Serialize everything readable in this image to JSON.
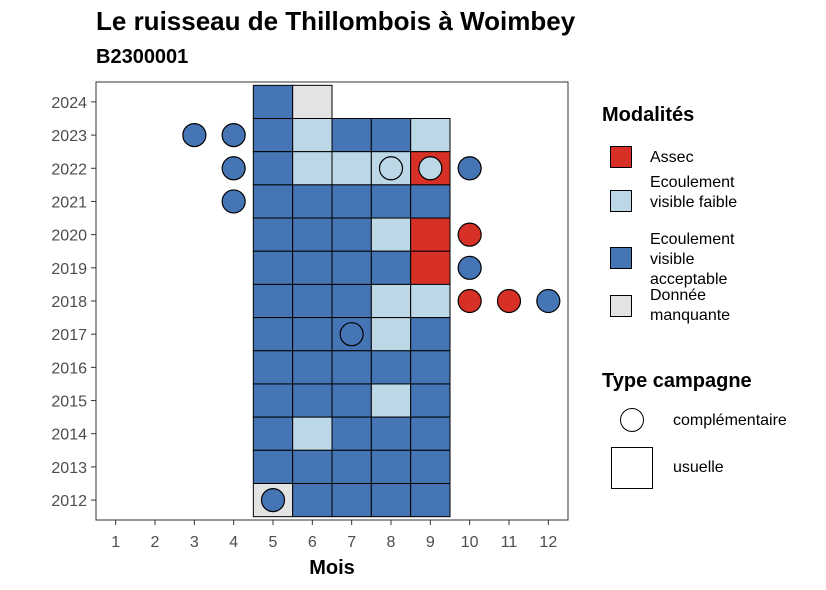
{
  "header": {
    "title": "Le ruisseau de Thillombois à Woimbey",
    "subtitle": "B2300001"
  },
  "legend": {
    "modalites_title": "Modalités",
    "modalites": [
      {
        "label": "Assec",
        "color": "#d73027"
      },
      {
        "label": "Ecoulement visible faible",
        "color": "#bcd7e6"
      },
      {
        "label": "Ecoulement visible acceptable",
        "color": "#4575b4"
      },
      {
        "label": "Donnée manquante",
        "color": "#e3e3e3"
      }
    ],
    "campagne_title": "Type campagne",
    "campagnes": [
      {
        "label": "complémentaire",
        "shape": "circle"
      },
      {
        "label": "usuelle",
        "shape": "square"
      }
    ]
  },
  "chart_data": {
    "type": "heatmap",
    "xlabel": "Mois",
    "ylabel": "",
    "x_ticks": [
      1,
      2,
      3,
      4,
      5,
      6,
      7,
      8,
      9,
      10,
      11,
      12
    ],
    "y_ticks": [
      2012,
      2013,
      2014,
      2015,
      2016,
      2017,
      2018,
      2019,
      2020,
      2021,
      2022,
      2023,
      2024
    ],
    "xlim": [
      0.5,
      12.5
    ],
    "ylim": [
      2011.4,
      2024.6
    ],
    "colors": {
      "Assec": "#d73027",
      "Ecoulement visible faible": "#bcd7e6",
      "Ecoulement visible acceptable": "#4575b4",
      "Donnée manquante": "#e3e3e3"
    },
    "usuelle": [
      {
        "year": 2024,
        "month": 5,
        "value": "Ecoulement visible acceptable"
      },
      {
        "year": 2024,
        "month": 6,
        "value": "Donnée manquante"
      },
      {
        "year": 2023,
        "month": 5,
        "value": "Ecoulement visible acceptable"
      },
      {
        "year": 2023,
        "month": 6,
        "value": "Ecoulement visible faible"
      },
      {
        "year": 2023,
        "month": 7,
        "value": "Ecoulement visible acceptable"
      },
      {
        "year": 2023,
        "month": 8,
        "value": "Ecoulement visible acceptable"
      },
      {
        "year": 2023,
        "month": 9,
        "value": "Ecoulement visible faible"
      },
      {
        "year": 2022,
        "month": 5,
        "value": "Ecoulement visible acceptable"
      },
      {
        "year": 2022,
        "month": 6,
        "value": "Ecoulement visible faible"
      },
      {
        "year": 2022,
        "month": 7,
        "value": "Ecoulement visible faible"
      },
      {
        "year": 2022,
        "month": 8,
        "value": "Ecoulement visible faible"
      },
      {
        "year": 2022,
        "month": 9,
        "value": "Assec"
      },
      {
        "year": 2021,
        "month": 5,
        "value": "Ecoulement visible acceptable"
      },
      {
        "year": 2021,
        "month": 6,
        "value": "Ecoulement visible acceptable"
      },
      {
        "year": 2021,
        "month": 7,
        "value": "Ecoulement visible acceptable"
      },
      {
        "year": 2021,
        "month": 8,
        "value": "Ecoulement visible acceptable"
      },
      {
        "year": 2021,
        "month": 9,
        "value": "Ecoulement visible acceptable"
      },
      {
        "year": 2020,
        "month": 5,
        "value": "Ecoulement visible acceptable"
      },
      {
        "year": 2020,
        "month": 6,
        "value": "Ecoulement visible acceptable"
      },
      {
        "year": 2020,
        "month": 7,
        "value": "Ecoulement visible acceptable"
      },
      {
        "year": 2020,
        "month": 8,
        "value": "Ecoulement visible faible"
      },
      {
        "year": 2020,
        "month": 9,
        "value": "Assec"
      },
      {
        "year": 2019,
        "month": 5,
        "value": "Ecoulement visible acceptable"
      },
      {
        "year": 2019,
        "month": 6,
        "value": "Ecoulement visible acceptable"
      },
      {
        "year": 2019,
        "month": 7,
        "value": "Ecoulement visible acceptable"
      },
      {
        "year": 2019,
        "month": 8,
        "value": "Ecoulement visible acceptable"
      },
      {
        "year": 2019,
        "month": 9,
        "value": "Assec"
      },
      {
        "year": 2018,
        "month": 5,
        "value": "Ecoulement visible acceptable"
      },
      {
        "year": 2018,
        "month": 6,
        "value": "Ecoulement visible acceptable"
      },
      {
        "year": 2018,
        "month": 7,
        "value": "Ecoulement visible acceptable"
      },
      {
        "year": 2018,
        "month": 8,
        "value": "Ecoulement visible faible"
      },
      {
        "year": 2018,
        "month": 9,
        "value": "Ecoulement visible faible"
      },
      {
        "year": 2017,
        "month": 5,
        "value": "Ecoulement visible acceptable"
      },
      {
        "year": 2017,
        "month": 6,
        "value": "Ecoulement visible acceptable"
      },
      {
        "year": 2017,
        "month": 7,
        "value": "Ecoulement visible acceptable"
      },
      {
        "year": 2017,
        "month": 8,
        "value": "Ecoulement visible faible"
      },
      {
        "year": 2017,
        "month": 9,
        "value": "Ecoulement visible acceptable"
      },
      {
        "year": 2016,
        "month": 5,
        "value": "Ecoulement visible acceptable"
      },
      {
        "year": 2016,
        "month": 6,
        "value": "Ecoulement visible acceptable"
      },
      {
        "year": 2016,
        "month": 7,
        "value": "Ecoulement visible acceptable"
      },
      {
        "year": 2016,
        "month": 8,
        "value": "Ecoulement visible acceptable"
      },
      {
        "year": 2016,
        "month": 9,
        "value": "Ecoulement visible acceptable"
      },
      {
        "year": 2015,
        "month": 5,
        "value": "Ecoulement visible acceptable"
      },
      {
        "year": 2015,
        "month": 6,
        "value": "Ecoulement visible acceptable"
      },
      {
        "year": 2015,
        "month": 7,
        "value": "Ecoulement visible acceptable"
      },
      {
        "year": 2015,
        "month": 8,
        "value": "Ecoulement visible faible"
      },
      {
        "year": 2015,
        "month": 9,
        "value": "Ecoulement visible acceptable"
      },
      {
        "year": 2014,
        "month": 5,
        "value": "Ecoulement visible acceptable"
      },
      {
        "year": 2014,
        "month": 6,
        "value": "Ecoulement visible faible"
      },
      {
        "year": 2014,
        "month": 7,
        "value": "Ecoulement visible acceptable"
      },
      {
        "year": 2014,
        "month": 8,
        "value": "Ecoulement visible acceptable"
      },
      {
        "year": 2014,
        "month": 9,
        "value": "Ecoulement visible acceptable"
      },
      {
        "year": 2013,
        "month": 5,
        "value": "Ecoulement visible acceptable"
      },
      {
        "year": 2013,
        "month": 6,
        "value": "Ecoulement visible acceptable"
      },
      {
        "year": 2013,
        "month": 7,
        "value": "Ecoulement visible acceptable"
      },
      {
        "year": 2013,
        "month": 8,
        "value": "Ecoulement visible acceptable"
      },
      {
        "year": 2013,
        "month": 9,
        "value": "Ecoulement visible acceptable"
      },
      {
        "year": 2012,
        "month": 5,
        "value": "Donnée manquante"
      },
      {
        "year": 2012,
        "month": 6,
        "value": "Ecoulement visible acceptable"
      },
      {
        "year": 2012,
        "month": 7,
        "value": "Ecoulement visible acceptable"
      },
      {
        "year": 2012,
        "month": 8,
        "value": "Ecoulement visible acceptable"
      },
      {
        "year": 2012,
        "month": 9,
        "value": "Ecoulement visible acceptable"
      }
    ],
    "complementaire": [
      {
        "year": 2023,
        "month": 3,
        "value": "Ecoulement visible acceptable"
      },
      {
        "year": 2023,
        "month": 4,
        "value": "Ecoulement visible acceptable"
      },
      {
        "year": 2022,
        "month": 4,
        "value": "Ecoulement visible acceptable"
      },
      {
        "year": 2022,
        "month": 8,
        "value": "Ecoulement visible faible"
      },
      {
        "year": 2022,
        "month": 9,
        "value": "Ecoulement visible faible"
      },
      {
        "year": 2022,
        "month": 10,
        "value": "Ecoulement visible acceptable"
      },
      {
        "year": 2021,
        "month": 4,
        "value": "Ecoulement visible acceptable"
      },
      {
        "year": 2020,
        "month": 10,
        "value": "Assec"
      },
      {
        "year": 2019,
        "month": 10,
        "value": "Ecoulement visible acceptable"
      },
      {
        "year": 2018,
        "month": 10,
        "value": "Assec"
      },
      {
        "year": 2018,
        "month": 11,
        "value": "Assec"
      },
      {
        "year": 2018,
        "month": 12,
        "value": "Ecoulement visible acceptable"
      },
      {
        "year": 2017,
        "month": 7,
        "value": "Ecoulement visible acceptable"
      },
      {
        "year": 2012,
        "month": 5,
        "value": "Ecoulement visible acceptable"
      }
    ]
  }
}
